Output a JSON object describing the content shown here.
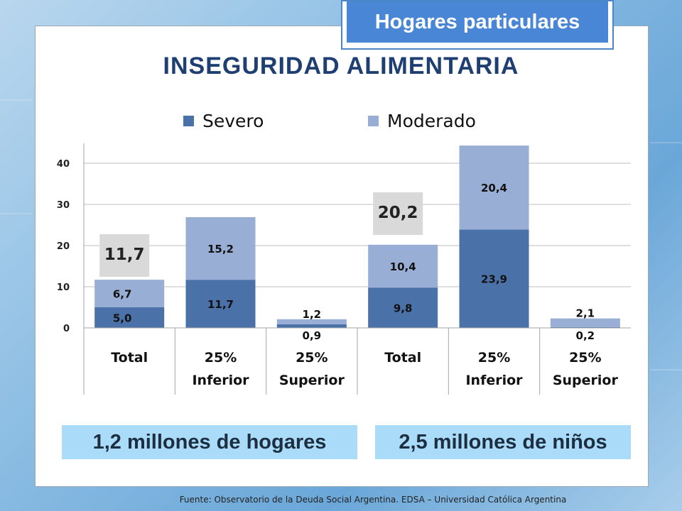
{
  "header": {
    "tag": "Hogares particulares"
  },
  "chart_data": {
    "type": "bar",
    "stacked": true,
    "title": "INSEGURIDAD ALIMENTARIA",
    "xlabel": "",
    "ylabel": "",
    "ylim": [
      0,
      45
    ],
    "yticks": [
      "0",
      "10",
      "20",
      "30",
      "40"
    ],
    "ytick_values": [
      0,
      10,
      20,
      30,
      40
    ],
    "grid": true,
    "legend_position": "top",
    "categories": [
      "Total",
      "25% Inferior",
      "25% Superior",
      "Total",
      "25% Inferior",
      "25% Superior"
    ],
    "category_lines": [
      [
        "Total"
      ],
      [
        "25%",
        "Inferior"
      ],
      [
        "25%",
        "Superior"
      ],
      [
        "Total"
      ],
      [
        "25%",
        "Inferior"
      ],
      [
        "25%",
        "Superior"
      ]
    ],
    "series": [
      {
        "name": "Severo",
        "color": "#4a72a9",
        "values": [
          5.0,
          11.7,
          0.9,
          9.8,
          23.9,
          0.2
        ],
        "labels": [
          "5,0",
          "11,7",
          "0,9",
          "9,8",
          "23,9",
          "0,2"
        ]
      },
      {
        "name": "Moderado",
        "color": "#98aed5",
        "values": [
          6.7,
          15.2,
          1.2,
          10.4,
          20.4,
          2.1
        ],
        "labels": [
          "6,7",
          "15,2",
          "1,2",
          "10,4",
          "20,4",
          "2,1"
        ]
      }
    ],
    "annotations": [
      {
        "label": "11,7",
        "group": 0
      },
      {
        "label": "20,2",
        "group": 3
      }
    ]
  },
  "footer": {
    "hogares": "1,2 millones de hogares",
    "ninos": "2,5 millones de niños",
    "source": "Fuente:   Observatorio de  la Deuda Social Argentina. EDSA  – Universidad Católica Argentina"
  }
}
